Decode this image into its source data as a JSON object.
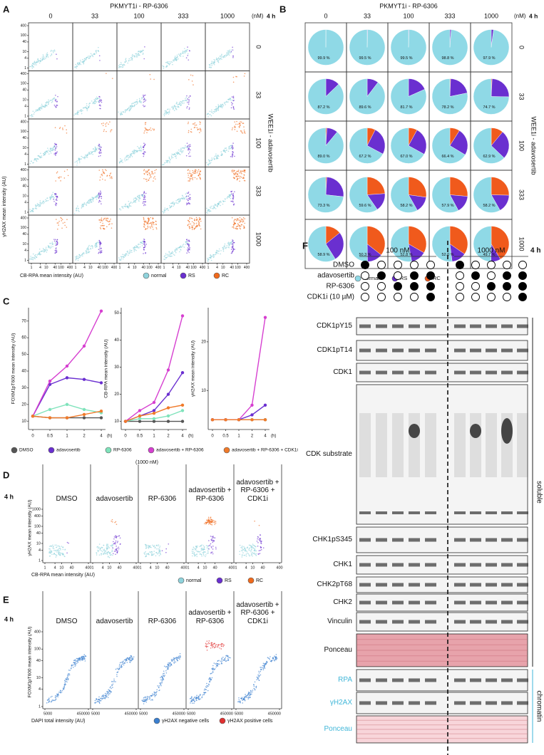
{
  "panel_labels": [
    "A",
    "B",
    "C",
    "D",
    "E",
    "F"
  ],
  "chart_data": [
    {
      "type": "scatter",
      "title": "PKMYT1i - RP-6306",
      "column_labels": [
        "0",
        "33",
        "100",
        "333",
        "1000"
      ],
      "column_unit": "(nM)",
      "time": "4 h",
      "row_labels": [
        "0",
        "33",
        "100",
        "333",
        "1000"
      ],
      "row_title": "WEE1i - adavosertib",
      "xlabel": "CB-RPA mean intensity (AU)",
      "ylabel": "γH2AX mean intensity (AU)",
      "xscale": "log",
      "yscale": "log",
      "xlim": [
        1,
        400
      ],
      "xticks": [
        1,
        4,
        10,
        40,
        100,
        400
      ],
      "ylim": [
        1,
        400
      ],
      "yticks": [
        1,
        4,
        10,
        40,
        100,
        400
      ],
      "series": [
        {
          "name": "normal",
          "color": "#8fd3dc"
        },
        {
          "name": "RS",
          "color": "#6a2fd0"
        },
        {
          "name": "RC",
          "color": "#f06a1c"
        }
      ]
    },
    {
      "type": "pie",
      "title": "PKMYT1i - RP-6306",
      "column_labels": [
        "0",
        "33",
        "100",
        "333",
        "1000"
      ],
      "column_unit": "(nM)",
      "time": "4 h",
      "row_labels": [
        "0",
        "33",
        "100",
        "333",
        "1000"
      ],
      "row_title": "WEE1i - adavosertib",
      "series": [
        {
          "name": "normal",
          "color": "#8fd9e6",
          "values": [
            99.9,
            99.5,
            99.5,
            98.8,
            97.9,
            87.2,
            89.6,
            81.7,
            78.2,
            74.7,
            89.0,
            67.2,
            67.0,
            66.4,
            62.9,
            73.3,
            59.6,
            58.2,
            57.9,
            58.2,
            58.9,
            50.3,
            52.8,
            52.0,
            49.7
          ],
          "value_labels": [
            "99.9 %",
            "99.5 %",
            "99.5 %",
            "98.8 %",
            "97.9 %",
            "87.2 %",
            "89.6 %",
            "81.7 %",
            "78.2 %",
            "74.7 %",
            "89.0 %",
            "67.2 %",
            "67.0 %",
            "66.4 %",
            "62.9 %",
            "73.3 %",
            "59.6 %",
            "58.2 %",
            "57.9 %",
            "58.2 %",
            "58.9 %",
            "50.3 %",
            "52.8 %",
            "52.0 %",
            "49.7 %"
          ]
        },
        {
          "name": "RS",
          "color": "#6a2fd0",
          "values": [
            0.1,
            0.5,
            0.5,
            1.2,
            2.1,
            12.8,
            10.4,
            18.3,
            21.1,
            24.5,
            10.0,
            25.3,
            25.1,
            24.6,
            26.1,
            25.8,
            16.5,
            14.6,
            15.7,
            16.4,
            26.9,
            14.1,
            13.9,
            13.4,
            8.9
          ]
        },
        {
          "name": "RC",
          "color": "#f05a1c",
          "values": [
            0,
            0,
            0,
            0,
            0,
            0,
            0,
            0,
            0.7,
            0.8,
            1.0,
            7.5,
            7.9,
            9.0,
            11.0,
            0.9,
            23.9,
            27.2,
            26.4,
            25.4,
            14.2,
            35.6,
            33.3,
            34.6,
            41.4
          ]
        }
      ]
    },
    {
      "type": "line",
      "categories": [
        "0",
        "0.5",
        "1",
        "2",
        "4"
      ],
      "x_unit": "(h)",
      "ylabel": "FOXM1pT600 mean intensity (AU)",
      "ylim": [
        5,
        78
      ],
      "yticks": [
        10,
        20,
        30,
        40,
        50,
        60,
        70
      ],
      "legend_note": "(1000 nM)",
      "series": [
        {
          "name": "DMSO",
          "color": "#555555",
          "values": [
            13,
            12,
            12,
            12,
            12
          ]
        },
        {
          "name": "adavosertib",
          "color": "#6a2fd0",
          "values": [
            13,
            32,
            36,
            35,
            33
          ]
        },
        {
          "name": "RP-6306",
          "color": "#7fe3bb",
          "values": [
            13,
            17,
            20,
            17,
            15
          ]
        },
        {
          "name": "adavosertib + RP-6306",
          "color": "#d63fd0",
          "values": [
            13,
            34,
            43,
            55,
            76
          ]
        },
        {
          "name": "adavosertib + RP-6306 + CDK1i",
          "color": "#f07a2a",
          "values": [
            13,
            12,
            12,
            14,
            16
          ]
        }
      ]
    },
    {
      "type": "line",
      "categories": [
        "0",
        "0.5",
        "1",
        "2",
        "4"
      ],
      "x_unit": "(h)",
      "ylabel": "CB-RPA mean intensity (AU)",
      "ylim": [
        7,
        52
      ],
      "yticks": [
        10,
        20,
        30,
        40,
        50
      ],
      "series": [
        {
          "name": "DMSO",
          "color": "#555555",
          "values": [
            10,
            10,
            10,
            10,
            10
          ]
        },
        {
          "name": "adavosertib",
          "color": "#6a2fd0",
          "values": [
            10,
            12,
            14,
            20,
            28
          ]
        },
        {
          "name": "RP-6306",
          "color": "#7fe3bb",
          "values": [
            10,
            11,
            11,
            12,
            14
          ]
        },
        {
          "name": "adavosertib + RP-6306",
          "color": "#d63fd0",
          "values": [
            10,
            14,
            17,
            29,
            49
          ]
        },
        {
          "name": "adavosertib + RP-6306 + CDK1i",
          "color": "#f07a2a",
          "values": [
            10,
            12,
            13,
            15,
            16
          ]
        }
      ]
    },
    {
      "type": "line",
      "categories": [
        "0",
        "0.5",
        "1",
        "2",
        "4"
      ],
      "x_unit": "(h)",
      "ylabel": "γH2AX mean intensity (AU)",
      "ylim": [
        2,
        27
      ],
      "yticks": [
        10,
        20
      ],
      "series": [
        {
          "name": "DMSO",
          "color": "#555555",
          "values": [
            4,
            4,
            4,
            4,
            4
          ]
        },
        {
          "name": "adavosertib",
          "color": "#6a2fd0",
          "values": [
            4,
            4,
            4,
            5,
            7
          ]
        },
        {
          "name": "RP-6306",
          "color": "#7fe3bb",
          "values": [
            4,
            4,
            4,
            4,
            4
          ]
        },
        {
          "name": "adavosertib + RP-6306",
          "color": "#d63fd0",
          "values": [
            4,
            4,
            4,
            7,
            25
          ]
        },
        {
          "name": "adavosertib + RP-6306 + CDK1i",
          "color": "#f07a2a",
          "values": [
            4,
            4,
            4,
            4,
            4
          ]
        }
      ]
    },
    {
      "type": "scatter",
      "time": "4 h",
      "column_labels": [
        "DMSO",
        "adavosertib",
        "RP-6306",
        "adavosertib + RP-6306",
        "adavosertib + RP-6306 + CDK1i"
      ],
      "xlabel": "CB-RPA mean intensity (AU)",
      "ylabel": "γH2AX mean intensity (AU)",
      "xscale": "log",
      "yscale": "log",
      "xlim": [
        1,
        400
      ],
      "xticks": [
        1,
        4,
        10,
        40,
        400
      ],
      "ylim": [
        1,
        1000
      ],
      "yticks": [
        1,
        4,
        10,
        40,
        100,
        400,
        1000
      ],
      "series": [
        {
          "name": "normal",
          "color": "#8fd3dc"
        },
        {
          "name": "RS",
          "color": "#6a2fd0"
        },
        {
          "name": "RC",
          "color": "#f06a1c"
        }
      ]
    },
    {
      "type": "scatter",
      "time": "4 h",
      "column_labels": [
        "DMSO",
        "adavosertib",
        "RP-6306",
        "adavosertib + RP-6306",
        "adavosertib + RP-6306 + CDK1i"
      ],
      "xlabel": "DAPI total intensity (AU)",
      "ylabel": "FOXM1pT600 mean intensity (AU)",
      "xscale": "log",
      "yscale": "log",
      "xlim": [
        5000,
        450000
      ],
      "xticks": [
        5000,
        450000
      ],
      "ylim": [
        1,
        400
      ],
      "yticks": [
        1,
        4,
        10,
        40,
        100,
        400
      ],
      "series": [
        {
          "name": "γH2AX negative cells",
          "color": "#3a7fd0"
        },
        {
          "name": "γH2AX positive cells",
          "color": "#e03030"
        }
      ]
    }
  ],
  "blot": {
    "groups": [
      "100 nM",
      "1000 nM"
    ],
    "time": "4 h",
    "treatments": [
      {
        "name": "DMSO",
        "pattern": [
          1,
          0,
          0,
          0,
          0
        ]
      },
      {
        "name": "adavosertib",
        "pattern": [
          0,
          1,
          0,
          1,
          1
        ]
      },
      {
        "name": "RP-6306",
        "pattern": [
          0,
          0,
          1,
          1,
          1
        ]
      },
      {
        "name": "CDK1i (10 µM)",
        "pattern": [
          0,
          0,
          0,
          0,
          1
        ]
      }
    ],
    "fractions": [
      {
        "label": "soluble",
        "rows": [
          "CDK1pY15",
          "CDK1pT14",
          "CDK1",
          "CDK substrate",
          "CHK1pS345",
          "CHK1",
          "CHK2pT68",
          "CHK2",
          "Vinculin",
          "Ponceau"
        ]
      },
      {
        "label": "chromatin",
        "rows": [
          "RPA",
          "γH2AX",
          "Ponceau"
        ]
      }
    ]
  }
}
